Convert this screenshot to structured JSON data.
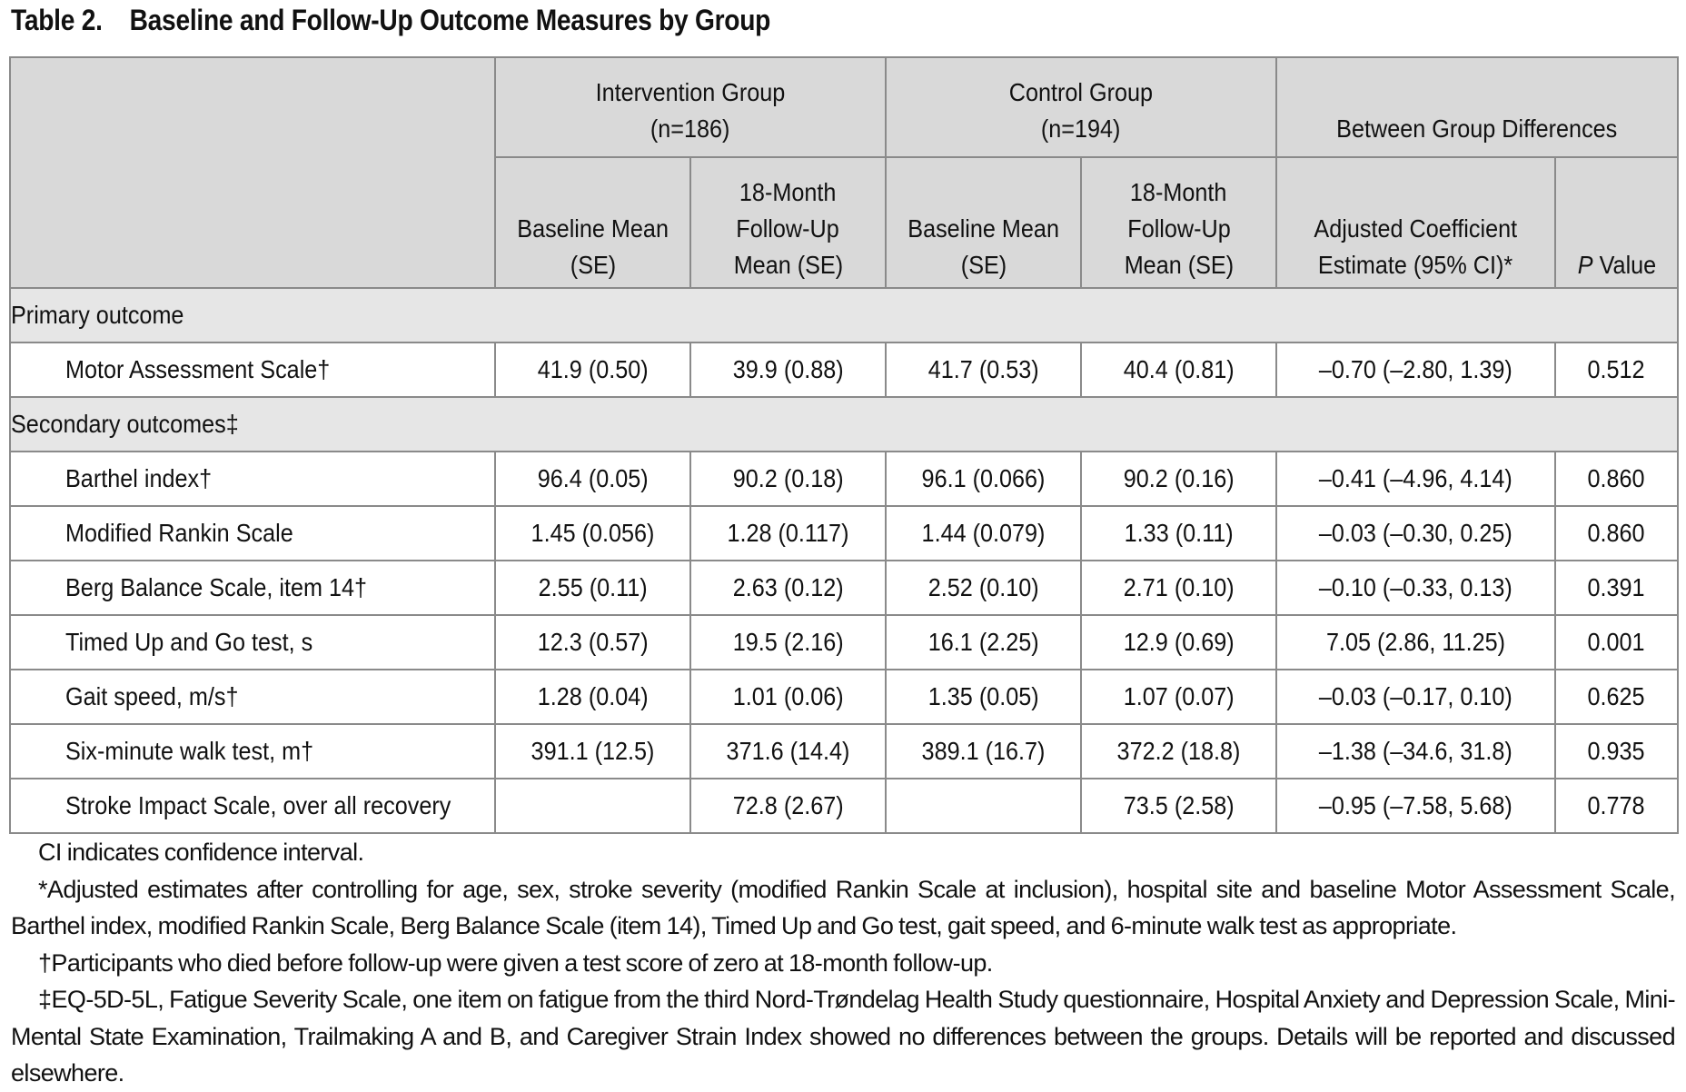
{
  "table": {
    "label": "Table 2.",
    "title": "Baseline and Follow-Up Outcome Measures by Group",
    "groups": {
      "intervention": {
        "name": "Intervention Group",
        "n": "(n=186)"
      },
      "control": {
        "name": "Control Group",
        "n": "(n=194)"
      },
      "between": {
        "name": "Between Group Differences"
      }
    },
    "columns": {
      "baseline_l1": "Baseline Mean",
      "baseline_l2": "(SE)",
      "followup_l1": "18-Month",
      "followup_l2": "Follow-Up",
      "followup_l3": "Mean (SE)",
      "coef_l1": "Adjusted Coefficient",
      "coef_l2": "Estimate (95% CI)*",
      "p_italic": "P",
      "p_rest": " Value"
    },
    "sections": [
      {
        "heading": "Primary outcome",
        "rows": [
          {
            "label": "Motor Assessment Scale†",
            "i_base": "41.9 (0.50)",
            "i_fu": "39.9 (0.88)",
            "c_base": "41.7 (0.53)",
            "c_fu": "40.4 (0.81)",
            "coef": "–0.70 (–2.80, 1.39)",
            "p": "0.512"
          }
        ]
      },
      {
        "heading": "Secondary outcomes‡",
        "rows": [
          {
            "label": "Barthel index†",
            "i_base": "96.4 (0.05)",
            "i_fu": "90.2 (0.18)",
            "c_base": "96.1 (0.066)",
            "c_fu": "90.2 (0.16)",
            "coef": "–0.41 (–4.96, 4.14)",
            "p": "0.860"
          },
          {
            "label": "Modified Rankin Scale",
            "i_base": "1.45 (0.056)",
            "i_fu": "1.28 (0.117)",
            "c_base": "1.44 (0.079)",
            "c_fu": "1.33 (0.11)",
            "coef": "–0.03 (–0.30, 0.25)",
            "p": "0.860"
          },
          {
            "label": "Berg Balance Scale, item 14†",
            "i_base": "2.55 (0.11)",
            "i_fu": "2.63 (0.12)",
            "c_base": "2.52 (0.10)",
            "c_fu": "2.71 (0.10)",
            "coef": "–0.10 (–0.33, 0.13)",
            "p": "0.391"
          },
          {
            "label": "Timed Up and Go test, s",
            "i_base": "12.3 (0.57)",
            "i_fu": "19.5 (2.16)",
            "c_base": "16.1 (2.25)",
            "c_fu": "12.9 (0.69)",
            "coef": "7.05 (2.86, 11.25)",
            "p": "0.001"
          },
          {
            "label": "Gait speed, m/s†",
            "i_base": "1.28 (0.04)",
            "i_fu": "1.01 (0.06)",
            "c_base": "1.35 (0.05)",
            "c_fu": "1.07 (0.07)",
            "coef": "–0.03 (–0.17, 0.10)",
            "p": "0.625"
          },
          {
            "label": "Six-minute walk test, m†",
            "i_base": "391.1 (12.5)",
            "i_fu": "371.6 (14.4)",
            "c_base": "389.1 (16.7)",
            "c_fu": "372.2 (18.8)",
            "coef": "–1.38 (–34.6, 31.8)",
            "p": "0.935"
          },
          {
            "label": "Stroke Impact Scale, over all recovery",
            "i_base": "",
            "i_fu": "72.8 (2.67)",
            "c_base": "",
            "c_fu": "73.5 (2.58)",
            "coef": "–0.95 (–7.58, 5.68)",
            "p": "0.778"
          }
        ]
      }
    ]
  },
  "footnotes": {
    "ci": "CI indicates confidence interval.",
    "adjusted": "*Adjusted estimates after controlling for age, sex, stroke severity (modified Rankin Scale at inclusion), hospital site and baseline Motor Assessment Scale, Barthel index, modified Rankin Scale, Berg Balance Scale (item 14), Timed Up and Go test, gait speed, and 6-minute walk test as appropriate.",
    "dagger": "†Participants who died before follow-up were given a test score of zero at 18-month follow-up.",
    "ddagger": "‡EQ-5D-5L, Fatigue Severity Scale, one item on fatigue from the third Nord-Trøndelag Health Study questionnaire, Hospital Anxiety and Depression Scale, Mini-Mental State Examination, Trailmaking A and B, and Caregiver Strain Index showed no differences between the groups. Details will be reported and discussed elsewhere."
  }
}
